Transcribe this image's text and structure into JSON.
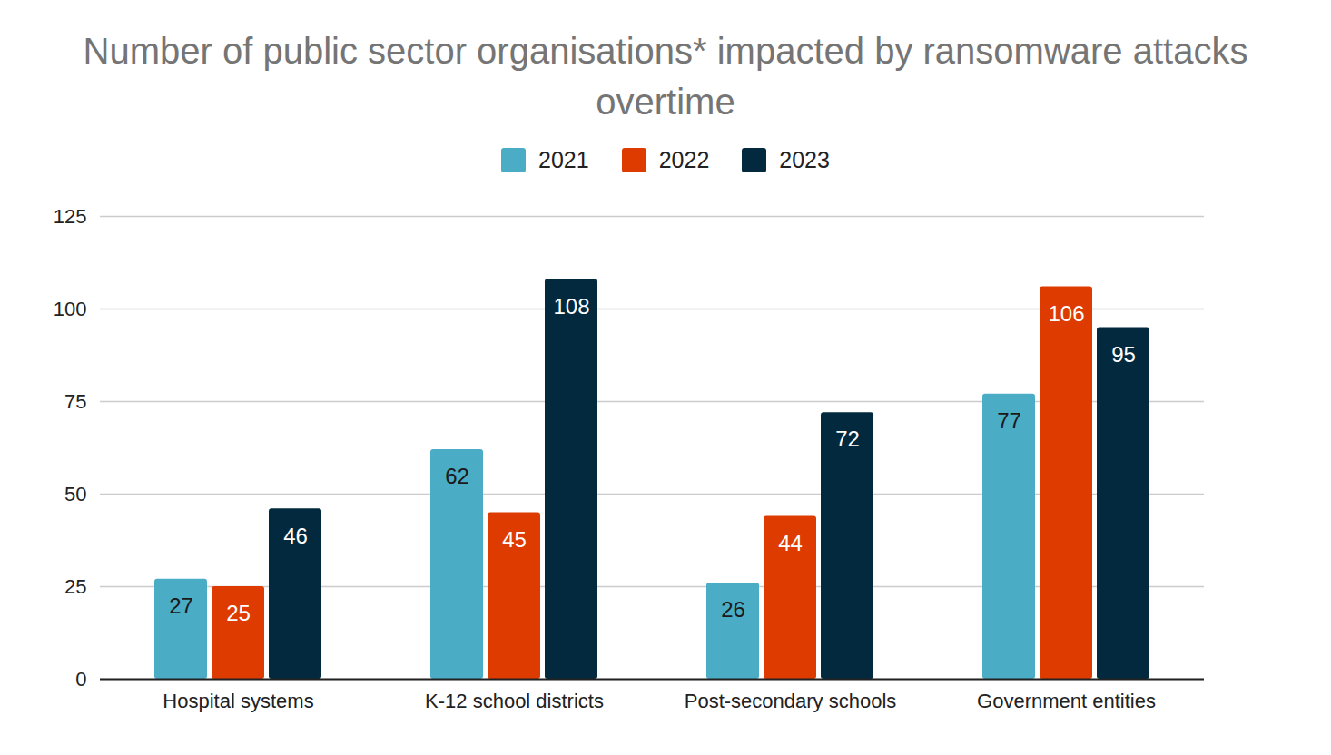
{
  "chart_data": {
    "type": "bar",
    "title": "Number of public sector organisations* impacted by ransomware attacks overtime",
    "categories": [
      "Hospital systems",
      "K-12 school districts",
      "Post-secondary schools",
      "Government entities"
    ],
    "series": [
      {
        "name": "2021",
        "color": "#4bacc6",
        "values": [
          27,
          62,
          26,
          77
        ]
      },
      {
        "name": "2022",
        "color": "#dd3b00",
        "values": [
          25,
          45,
          44,
          106
        ]
      },
      {
        "name": "2023",
        "color": "#03293f",
        "values": [
          46,
          108,
          72,
          95
        ]
      }
    ],
    "ylim": [
      0,
      125
    ],
    "yticks": [
      0,
      25,
      50,
      75,
      100,
      125
    ],
    "grid": true,
    "legend": "top",
    "data_labels": true
  }
}
